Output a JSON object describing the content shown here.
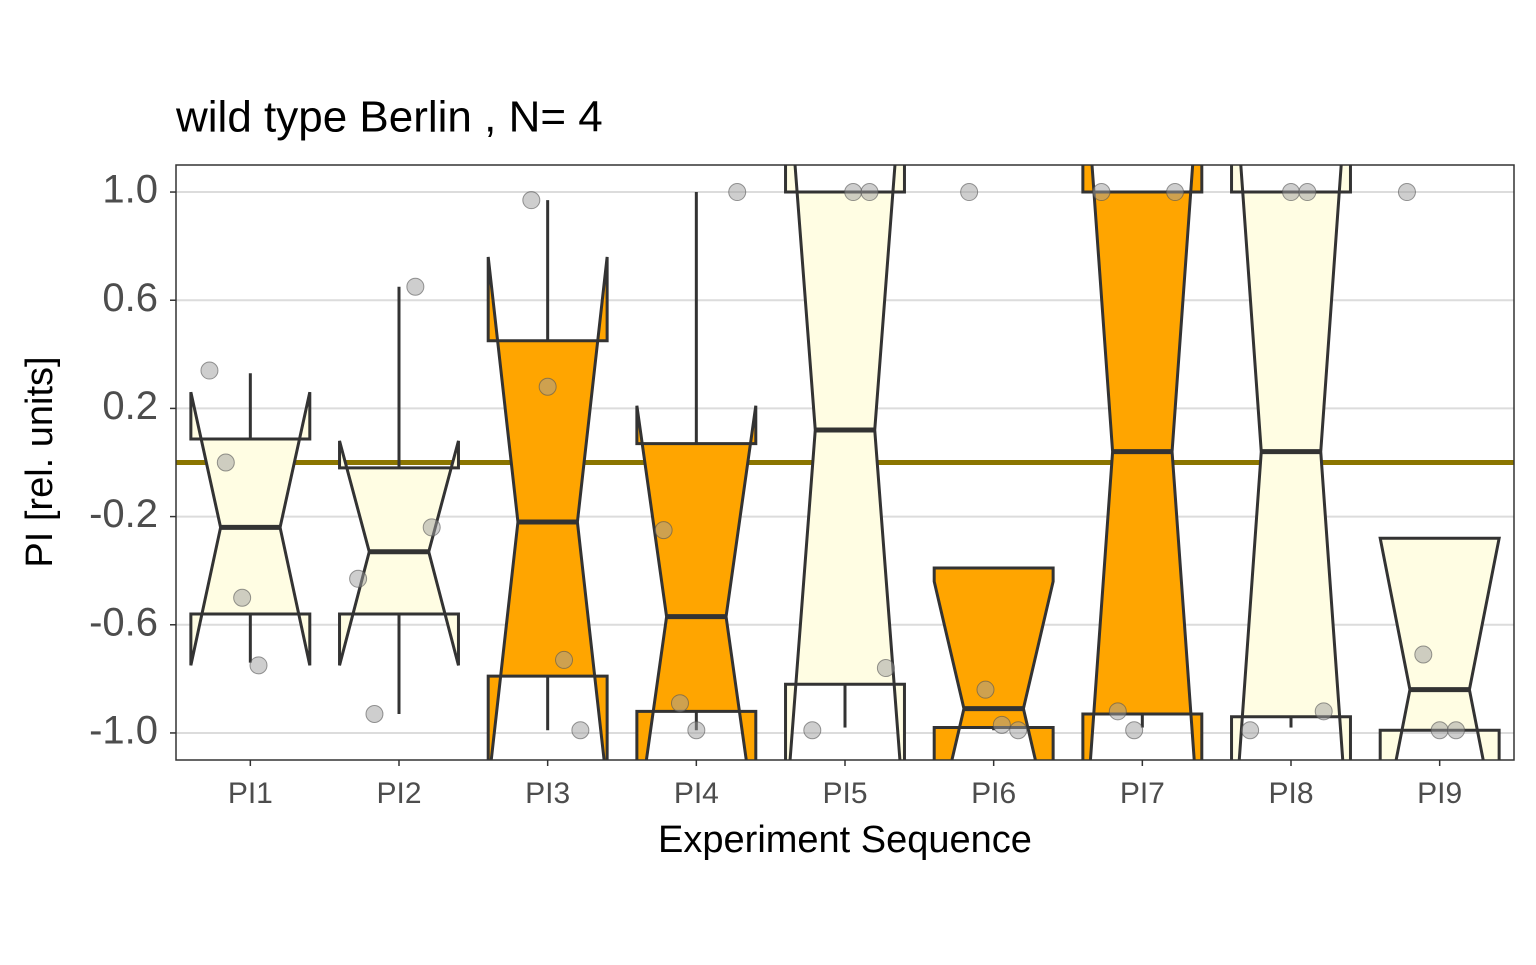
{
  "chart_data": {
    "type": "notched-box",
    "title": "wild type Berlin , N= 4",
    "xlabel": "Experiment Sequence",
    "ylabel": "PI [rel. units]",
    "categories": [
      "PI1",
      "PI2",
      "PI3",
      "PI4",
      "PI5",
      "PI6",
      "PI7",
      "PI8",
      "PI9"
    ],
    "ylim": [
      -1.1,
      1.1
    ],
    "yticks": [
      {
        "value": -1.0,
        "label": "-1.0"
      },
      -0.6,
      -0.2,
      0.2,
      0.6,
      {
        "value": 1.0,
        "label": "1.0"
      }
    ],
    "grid": true,
    "hline": 0,
    "hline_color": "#8b7500",
    "point_color": "#9e9e9e",
    "boxes": [
      {
        "color": "#fffde3",
        "q1": -0.56,
        "median": -0.24,
        "q3": 0.087,
        "whisker_low": -0.74,
        "whisker_high": 0.33,
        "notch_low": -0.75,
        "notch_high": 0.26,
        "points": [
          0.34,
          0.0,
          -0.5,
          -0.75
        ]
      },
      {
        "color": "#fffde3",
        "q1": -0.56,
        "median": -0.33,
        "q3": -0.02,
        "whisker_low": -0.93,
        "whisker_high": 0.65,
        "notch_low": -0.75,
        "notch_high": 0.08,
        "points": [
          0.65,
          -0.24,
          -0.43,
          -0.93
        ]
      },
      {
        "color": "#ffa500",
        "q1": -0.79,
        "median": -0.22,
        "q3": 0.45,
        "whisker_low": -0.99,
        "whisker_high": 0.97,
        "notch_low": -1.2,
        "notch_high": 0.76,
        "points": [
          0.97,
          0.28,
          -0.73,
          -0.99
        ]
      },
      {
        "color": "#ffa500",
        "q1": -0.92,
        "median": -0.57,
        "q3": 0.07,
        "whisker_low": -0.99,
        "whisker_high": 1.0,
        "notch_low": -1.35,
        "notch_high": 0.21,
        "points": [
          1.0,
          -0.25,
          -0.89,
          -0.99
        ]
      },
      {
        "color": "#fffde3",
        "q1": -0.82,
        "median": 0.12,
        "q3": 1.0,
        "whisker_low": -0.98,
        "whisker_high": 1.0,
        "notch_low": -1.32,
        "notch_high": 1.56,
        "points": [
          1.0,
          1.0,
          -0.76,
          -0.99
        ]
      },
      {
        "color": "#ffa500",
        "q1": -0.98,
        "median": -0.91,
        "q3": -0.39,
        "whisker_low": -0.99,
        "whisker_high": -0.39,
        "notch_low": -1.38,
        "notch_high": -0.44,
        "points": [
          1.0,
          -0.84,
          -0.97,
          -0.99
        ]
      },
      {
        "color": "#ffa500",
        "q1": -0.93,
        "median": 0.04,
        "q3": 1.0,
        "whisker_low": -0.98,
        "whisker_high": 1.0,
        "notch_low": -1.49,
        "notch_high": 1.57,
        "points": [
          1.0,
          1.0,
          -0.92,
          -0.99
        ]
      },
      {
        "color": "#fffde3",
        "q1": -0.94,
        "median": 0.04,
        "q3": 1.0,
        "whisker_low": -0.98,
        "whisker_high": 1.0,
        "notch_low": -1.5,
        "notch_high": 1.58,
        "points": [
          1.0,
          1.0,
          -0.92,
          -0.99
        ]
      },
      {
        "color": "#fffde3",
        "q1": -0.99,
        "median": -0.84,
        "q3": -0.28,
        "whisker_low": -0.99,
        "whisker_high": -0.28,
        "notch_low": -1.4,
        "notch_high": -0.28,
        "points": [
          1.0,
          -0.71,
          -0.99,
          -0.99
        ]
      }
    ]
  }
}
